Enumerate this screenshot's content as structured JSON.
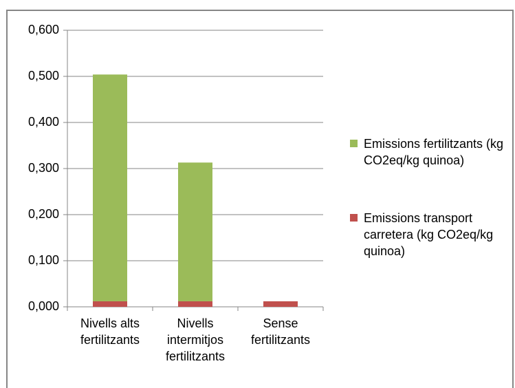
{
  "chart_data": {
    "type": "stacked_bar",
    "categories": [
      "Nivells alts fertilitzants",
      "Nivells intermitjos fertilitzants",
      "Sense fertilitzants"
    ],
    "series": [
      {
        "name": "Emissions fertilitzants (kg CO2eq/kg quinoa)",
        "color": "#9bbb59",
        "values": [
          0.492,
          0.301,
          0
        ]
      },
      {
        "name": "Emissions transport carretera (kg CO2eq/kg quinoa)",
        "color": "#c0504d",
        "values": [
          0.012,
          0.012,
          0.012
        ]
      }
    ],
    "ylim": [
      0,
      0.6
    ],
    "yticks": [
      {
        "value": 0,
        "label": "0,000"
      },
      {
        "value": 0.1,
        "label": "0,100"
      },
      {
        "value": 0.2,
        "label": "0,200"
      },
      {
        "value": 0.3,
        "label": "0,300"
      },
      {
        "value": 0.4,
        "label": "0,400"
      },
      {
        "value": 0.5,
        "label": "0,500"
      },
      {
        "value": 0.6,
        "label": "0,600"
      }
    ],
    "grid": true,
    "legend": "right"
  }
}
